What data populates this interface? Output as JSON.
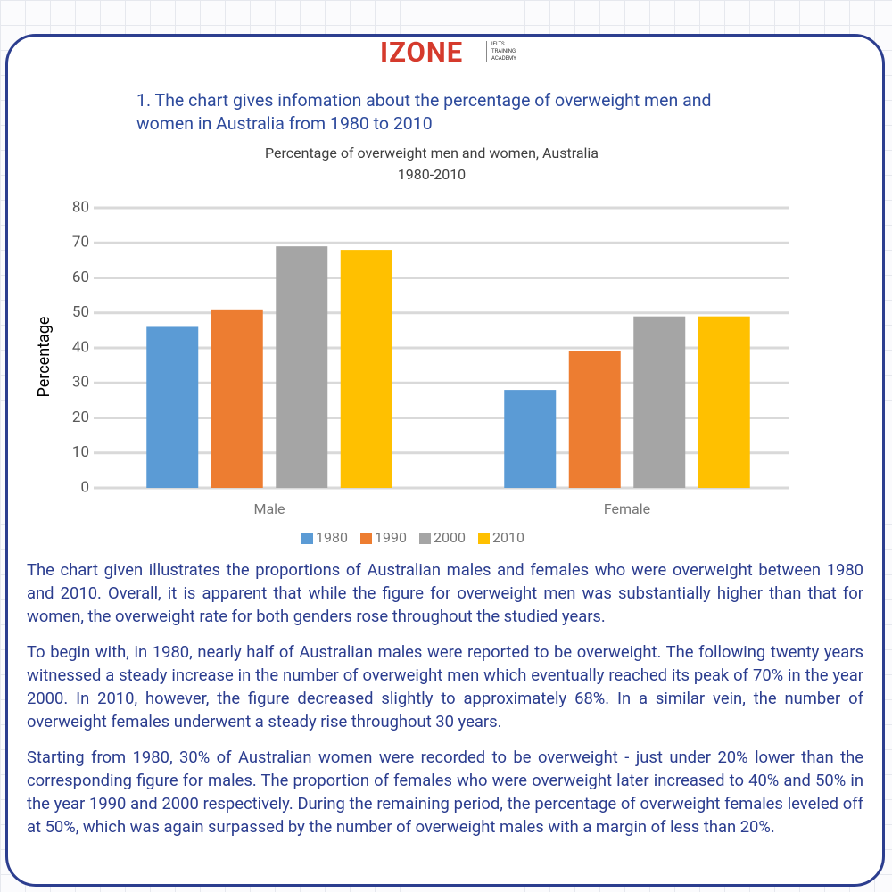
{
  "header": {
    "logo": "IZONE",
    "tagline": [
      "IELTS",
      "TRAINING",
      "ACADEMY"
    ]
  },
  "question": "1. The chart gives infomation about the percentage of overweight men and women in Australia from 1980 to 2010",
  "chart_data": {
    "type": "bar",
    "title": "Percentage of overweight  men and women, Australia",
    "subtitle": "1980-2010",
    "y_label": "Percentage",
    "categories": [
      "Male",
      "Female"
    ],
    "series": [
      {
        "name": "1980",
        "color": "#5b9bd5",
        "values": [
          46,
          28
        ]
      },
      {
        "name": "1990",
        "color": "#ed7d31",
        "values": [
          51,
          39
        ]
      },
      {
        "name": "2000",
        "color": "#a5a5a5",
        "values": [
          69,
          49
        ]
      },
      {
        "name": "2010",
        "color": "#ffc000",
        "values": [
          68,
          49
        ]
      }
    ],
    "ylim": [
      0,
      80
    ],
    "yticks": [
      0,
      10,
      20,
      30,
      40,
      50,
      60,
      70,
      80
    ],
    "grid": true,
    "legend": "bottom"
  },
  "body": {
    "paragraphs": [
      "The chart given illustrates the proportions of Australian males and females who were overweight between 1980 and 2010. Overall, it is apparent that while the figure for overweight men was substantially higher than that for women, the overweight rate for both genders rose throughout the studied years.",
      "To begin with, in 1980, nearly half of Australian males were reported to be overweight. The following twenty years witnessed a steady increase in the number of overweight men which eventually reached its peak of 70% in the year 2000. In 2010, however, the figure decreased slightly to approximately 68%. In a similar vein, the number of overweight females underwent a steady rise throughout 30 years.",
      "Starting from 1980, 30% of Australian women were recorded to be overweight - just under 20% lower than the corresponding figure for males. The proportion of females who were overweight later increased to 40% and 50% in the year 1990 and 2000 respectively. During the remaining period, the percentage of overweight females leveled off at 50%, which was again surpassed by the number of overweight males with a margin of less than 20%."
    ]
  }
}
